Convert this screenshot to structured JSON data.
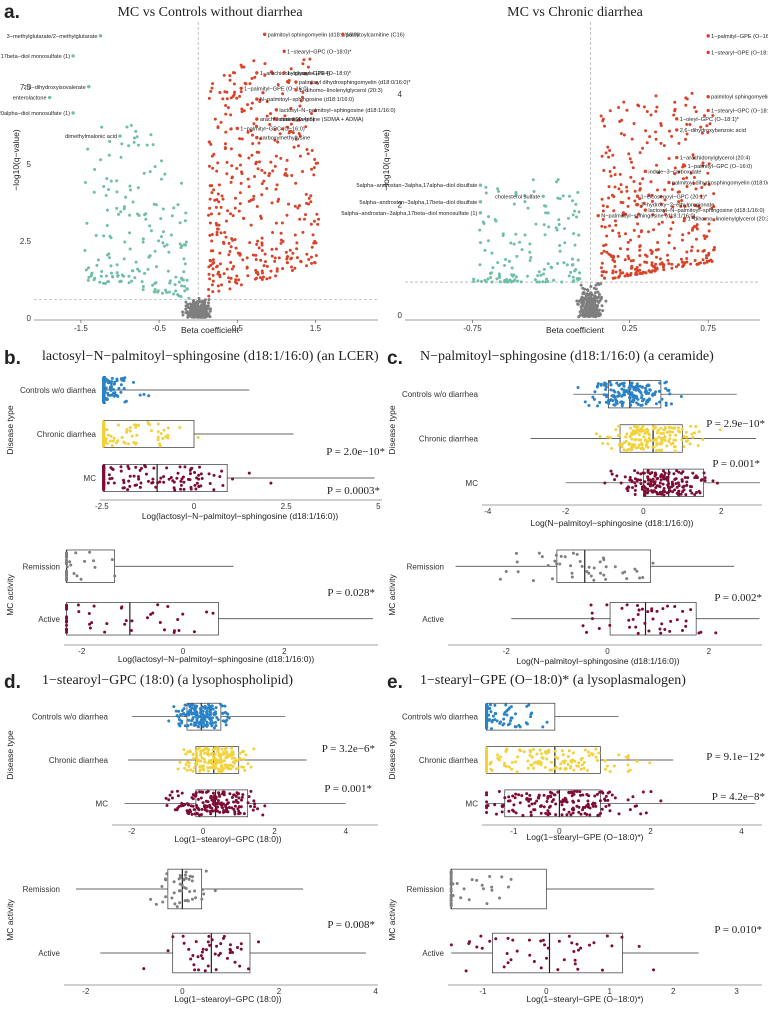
{
  "colors": {
    "red": "#d9432a",
    "teal": "#6fbfa8",
    "grey": "#7f7f7f",
    "blue": "#2b83c6",
    "yellow": "#f2d13a",
    "maroon": "#7d0d33"
  },
  "chart_data": [
    {
      "id": "volcano1",
      "panel": "a.",
      "type": "scatter",
      "title": "MC vs Controls without diarrhea",
      "xlabel": "Beta coefficient",
      "ylabel": "−log10(q−value)",
      "xlim": [
        -2.1,
        2.3
      ],
      "ylim": [
        0,
        9.6
      ],
      "xticks": [
        -1.5,
        -0.5,
        0.5,
        1.5
      ],
      "yticks": [
        0,
        2.5,
        5,
        7.5
      ],
      "threshold": 0.6,
      "labels": [
        {
          "x": 0.85,
          "y": 9.2,
          "text": "palmitoyl sphingomyelin (d18:1/16:0)"
        },
        {
          "x": 1.85,
          "y": 9.2,
          "text": "palmitoylcarnitine (C16)"
        },
        {
          "x": -1.25,
          "y": 9.15,
          "text": "3−methylglutarate/2−methylglutarate"
        },
        {
          "x": -1.6,
          "y": 8.5,
          "text": "5alpha−androstan−3beta,17beta−diol monosulfate (1)"
        },
        {
          "x": 1.1,
          "y": 8.65,
          "text": "1−stearyl−GPC (O−18:0)*"
        },
        {
          "x": 0.75,
          "y": 7.95,
          "text": "1−arachidonylglycerol (20:4)"
        },
        {
          "x": 1.1,
          "y": 7.95,
          "text": "1−stearyl−GPE (O−18:0)*"
        },
        {
          "x": 1.25,
          "y": 7.65,
          "text": "palmitoyl dihydrosphingomyelin (d18:0/16:0)*"
        },
        {
          "x": -1.4,
          "y": 7.5,
          "text": "2,3−dihydroxyisovalerate"
        },
        {
          "x": 0.55,
          "y": 7.45,
          "text": "1−palmityl−GPE (O−16:0)"
        },
        {
          "x": 1.25,
          "y": 7.4,
          "text": "1−dihomo−linolenylglycerol (20:3)"
        },
        {
          "x": -1.9,
          "y": 7.15,
          "text": "enterolactone"
        },
        {
          "x": 0.75,
          "y": 7.1,
          "text": "N−palmitoyl−sphingosine (d18:1/16:0)"
        },
        {
          "x": 1.0,
          "y": 6.75,
          "text": "lactosyl−N−palmitoyl−sphingosine (d18:1/16:0)"
        },
        {
          "x": -1.6,
          "y": 6.65,
          "text": "5alpha−pregnan−3beta,20alpha−diol monosulfate (1)"
        },
        {
          "x": 0.75,
          "y": 6.45,
          "text": "arachidonate (20:4n6)"
        },
        {
          "x": 1.0,
          "y": 6.45,
          "text": "dimethylarginine (SDMA + ADMA)"
        },
        {
          "x": 0.5,
          "y": 6.15,
          "text": "1−palmityl−GPC (O−16:0)"
        },
        {
          "x": 0.75,
          "y": 5.85,
          "text": "carboxymethyllysine"
        },
        {
          "x": -1.0,
          "y": 5.9,
          "text": "dimethylmalonic acid"
        }
      ]
    },
    {
      "id": "volcano2",
      "type": "scatter",
      "title": "MC vs Chronic diarrhea",
      "xlabel": "Beta coefficient",
      "ylabel": "−log10(q−value)",
      "xlim": [
        -1.18,
        1.08
      ],
      "ylim": [
        -0.05,
        5.3
      ],
      "xticks": [
        -0.75,
        0.25,
        0.75
      ],
      "yticks": [
        0,
        2,
        4
      ],
      "threshold": 0.6,
      "labels": [
        {
          "x": 0.75,
          "y": 5.05,
          "text": "1−palmityl−GPE (O−16:0)*"
        },
        {
          "x": 0.75,
          "y": 4.75,
          "text": "1−stearyl−GPE (O−18:0)*"
        },
        {
          "x": 0.75,
          "y": 3.95,
          "text": "palmitoyl sphingomyelin (d18:1/16:0)"
        },
        {
          "x": 0.75,
          "y": 3.7,
          "text": "1−stearyl−GPC (O−18:0)*"
        },
        {
          "x": 0.55,
          "y": 3.55,
          "text": "1−oleyl−GPC (O−18:1)*"
        },
        {
          "x": 0.55,
          "y": 3.35,
          "text": "2,6−dihydroxybenzoic acid"
        },
        {
          "x": 0.55,
          "y": 2.85,
          "text": "1−arachidonylglycerol (20:4)"
        },
        {
          "x": 0.6,
          "y": 2.7,
          "text": "1−palmityl−GPC (O−16:0)"
        },
        {
          "x": 0.35,
          "y": 2.6,
          "text": "indole−3−carboxylate"
        },
        {
          "x": 0.5,
          "y": 2.4,
          "text": "palmitoyl dihydrosphingomyelin (d18:0/16:0)*"
        },
        {
          "x": -0.7,
          "y": 2.35,
          "text": "5alpha−androstan−3alpha,17alpha−diol disulfate"
        },
        {
          "x": -0.3,
          "y": 2.15,
          "text": "cholesterol sulfate"
        },
        {
          "x": 0.3,
          "y": 2.15,
          "text": "1−eicosenoyl−GPC (20:1)*"
        },
        {
          "x": -0.7,
          "y": 2.05,
          "text": "5alpha−androstan−3alpha,17beta−diol disulfate"
        },
        {
          "x": 0.3,
          "y": 2.0,
          "text": "3−hydroxy−2−ethylpropionate"
        },
        {
          "x": 0.35,
          "y": 1.9,
          "text": "lactosyl−N−palmitoyl−sphingosine (d18:1/16:0)"
        },
        {
          "x": 0.05,
          "y": 1.8,
          "text": "N−palmitoyl−sphingosine (d18:1/16:0)"
        },
        {
          "x": 0.6,
          "y": 1.75,
          "text": "1−dihomo−linolenylglycerol (20:3)"
        },
        {
          "x": -0.7,
          "y": 1.85,
          "text": "5alpha−androstan−3alpha,17beta−diol monosulfate (1)"
        }
      ]
    },
    {
      "id": "b1",
      "panel": "b.",
      "type": "box",
      "title": "lactosyl−N−palmitoyl−sphingosine (d18:1/16:0) (an LCER)",
      "xlabel": "Log(lactosyl−N−palmitoyl−sphingosine (d18:1/16:0))",
      "ylabel": "Disease type",
      "xlim": [
        -2.55,
        5.1
      ],
      "xticks": [
        -2.5,
        0,
        2.5,
        5
      ],
      "groups": [
        {
          "name": "Controls w/o diarrhea",
          "color": "blue",
          "stats": [
            -2.45,
            -2.45,
            -2.45,
            -2.45,
            -2.45,
            1.5
          ]
        },
        {
          "name": "Chronic diarrhea",
          "color": "yellow",
          "stats": [
            -2.45,
            -2.45,
            -2.45,
            0.0,
            -2.45,
            2.7
          ]
        },
        {
          "name": "MC",
          "color": "maroon",
          "stats": [
            -2.45,
            -2.45,
            -1.0,
            0.9,
            -2.45,
            4.9
          ]
        }
      ],
      "pvalues": [
        "P = 2.0e−10*",
        "P = 0.0003*"
      ]
    },
    {
      "id": "b2",
      "type": "box",
      "title": "",
      "xlabel": "Log(lactosyl−N−palmitoyl−sphingosine (d18:1/16:0))",
      "ylabel": "MC activity",
      "xlim": [
        -2.35,
        3.85
      ],
      "xticks": [
        -2,
        0,
        2
      ],
      "groups": [
        {
          "name": "Remission",
          "color": "grey",
          "stats": [
            -2.3,
            -2.3,
            -2.3,
            -1.35,
            -2.3,
            1.0
          ]
        },
        {
          "name": "Active",
          "color": "maroon",
          "stats": [
            -2.3,
            -2.3,
            -1.05,
            0.7,
            -2.3,
            3.75
          ]
        }
      ],
      "pvalues": [
        "P = 0.028*"
      ]
    },
    {
      "id": "c1",
      "panel": "c.",
      "type": "box",
      "title": "N−palmitoyl−sphingosine (d18:1/16:0) (a ceramide)",
      "xlabel": "Log(N−palmitoyl−sphingosine (d18:1/16:0))",
      "ylabel": "Disease type",
      "xlim": [
        -4.15,
        3.05
      ],
      "xticks": [
        -4,
        -2,
        0,
        2
      ],
      "groups": [
        {
          "name": "Controls w/o diarrhea",
          "color": "blue",
          "stats": [
            -1.8,
            -0.9,
            -0.35,
            0.45,
            -1.8,
            2.4
          ]
        },
        {
          "name": "Chronic diarrhea",
          "color": "yellow",
          "stats": [
            -2.9,
            -0.6,
            0.25,
            1.0,
            -2.9,
            2.9
          ]
        },
        {
          "name": "MC",
          "color": "maroon",
          "stats": [
            -2.0,
            0.0,
            0.65,
            1.55,
            -2.0,
            3.0
          ]
        }
      ],
      "pvalues": [
        "P = 2.9e−10*",
        "P = 0.001*"
      ]
    },
    {
      "id": "c2",
      "type": "box",
      "title": "",
      "xlabel": "Log(N−palmitoyl−sphingosine (d18:1/16:0))",
      "ylabel": "MC activity",
      "xlim": [
        -3.15,
        3.05
      ],
      "xticks": [
        -2,
        0,
        2
      ],
      "groups": [
        {
          "name": "Remission",
          "color": "grey",
          "stats": [
            -3.0,
            -1.0,
            -0.45,
            0.85,
            -3.0,
            2.5
          ]
        },
        {
          "name": "Active",
          "color": "maroon",
          "stats": [
            -1.9,
            0.05,
            0.75,
            1.75,
            -1.9,
            3.0
          ]
        }
      ],
      "pvalues": [
        "P = 0.002*"
      ]
    },
    {
      "id": "d1",
      "panel": "d.",
      "type": "box",
      "title": "1−stearoyl−GPC (18:0) (a lysophospholipid)",
      "xlabel": "Log(1−stearoyl−GPC (18:0))",
      "ylabel": "Disease type",
      "xlim": [
        -2.55,
        4.9
      ],
      "xticks": [
        -2,
        0,
        2,
        4
      ],
      "groups": [
        {
          "name": "Controls w/o diarrhea",
          "color": "blue",
          "stats": [
            -2.0,
            -0.45,
            -0.05,
            0.5,
            -2.0,
            2.3
          ]
        },
        {
          "name": "Chronic diarrhea",
          "color": "yellow",
          "stats": [
            -2.1,
            -0.2,
            0.3,
            1.0,
            -2.1,
            2.9
          ]
        },
        {
          "name": "MC",
          "color": "maroon",
          "stats": [
            -2.2,
            -0.2,
            0.35,
            1.25,
            -2.2,
            4.0
          ]
        }
      ],
      "pvalues": [
        "P = 3.2e−6*",
        "P = 0.001*"
      ]
    },
    {
      "id": "d2",
      "type": "box",
      "title": "",
      "xlabel": "Log(1−stearoyl−GPC (18:0))",
      "ylabel": "MC activity",
      "xlim": [
        -2.45,
        4.05
      ],
      "xticks": [
        -2,
        0,
        2,
        4
      ],
      "groups": [
        {
          "name": "Remission",
          "color": "grey",
          "stats": [
            -2.2,
            -0.3,
            0.0,
            0.4,
            -2.2,
            2.5
          ]
        },
        {
          "name": "Active",
          "color": "maroon",
          "stats": [
            -1.7,
            -0.2,
            0.6,
            1.4,
            -1.7,
            3.8
          ]
        }
      ],
      "pvalues": [
        "P = 0.008*"
      ]
    },
    {
      "id": "e1",
      "panel": "e.",
      "type": "box",
      "title": "1−stearyl−GPE (O−18:0)* (a lysoplasmalogen)",
      "xlabel": "Log(1−stearyl−GPE (O−18:0)*)",
      "ylabel": "Disease type",
      "xlim": [
        -1.7,
        4.45
      ],
      "xticks": [
        -1,
        0,
        2,
        4
      ],
      "groups": [
        {
          "name": "Controls w/o diarrhea",
          "color": "blue",
          "stats": [
            -1.6,
            -1.6,
            -1.6,
            -0.1,
            -1.6,
            1.3
          ]
        },
        {
          "name": "Chronic diarrhea",
          "color": "yellow",
          "stats": [
            -1.6,
            -1.6,
            -0.1,
            0.9,
            -1.6,
            2.5
          ]
        },
        {
          "name": "MC",
          "color": "maroon",
          "stats": [
            -1.6,
            -1.2,
            0.0,
            0.9,
            -1.6,
            4.3
          ]
        }
      ],
      "pvalues": [
        "P = 9.1e−12*",
        "P = 4.2e−8*"
      ]
    },
    {
      "id": "e2",
      "type": "box",
      "title": "",
      "xlabel": "Log(1−stearyl−GPE (O−18:0)*)",
      "ylabel": "MC activity",
      "xlim": [
        -1.55,
        3.4
      ],
      "xticks": [
        -1,
        0,
        1,
        2,
        3
      ],
      "groups": [
        {
          "name": "Remission",
          "color": "grey",
          "stats": [
            -1.5,
            -1.5,
            -1.5,
            0.0,
            -1.5,
            1.7
          ]
        },
        {
          "name": "Active",
          "color": "maroon",
          "stats": [
            -1.5,
            -0.85,
            0.05,
            1.2,
            -1.5,
            2.4
          ]
        }
      ],
      "pvalues": [
        "P = 0.010*"
      ]
    }
  ]
}
